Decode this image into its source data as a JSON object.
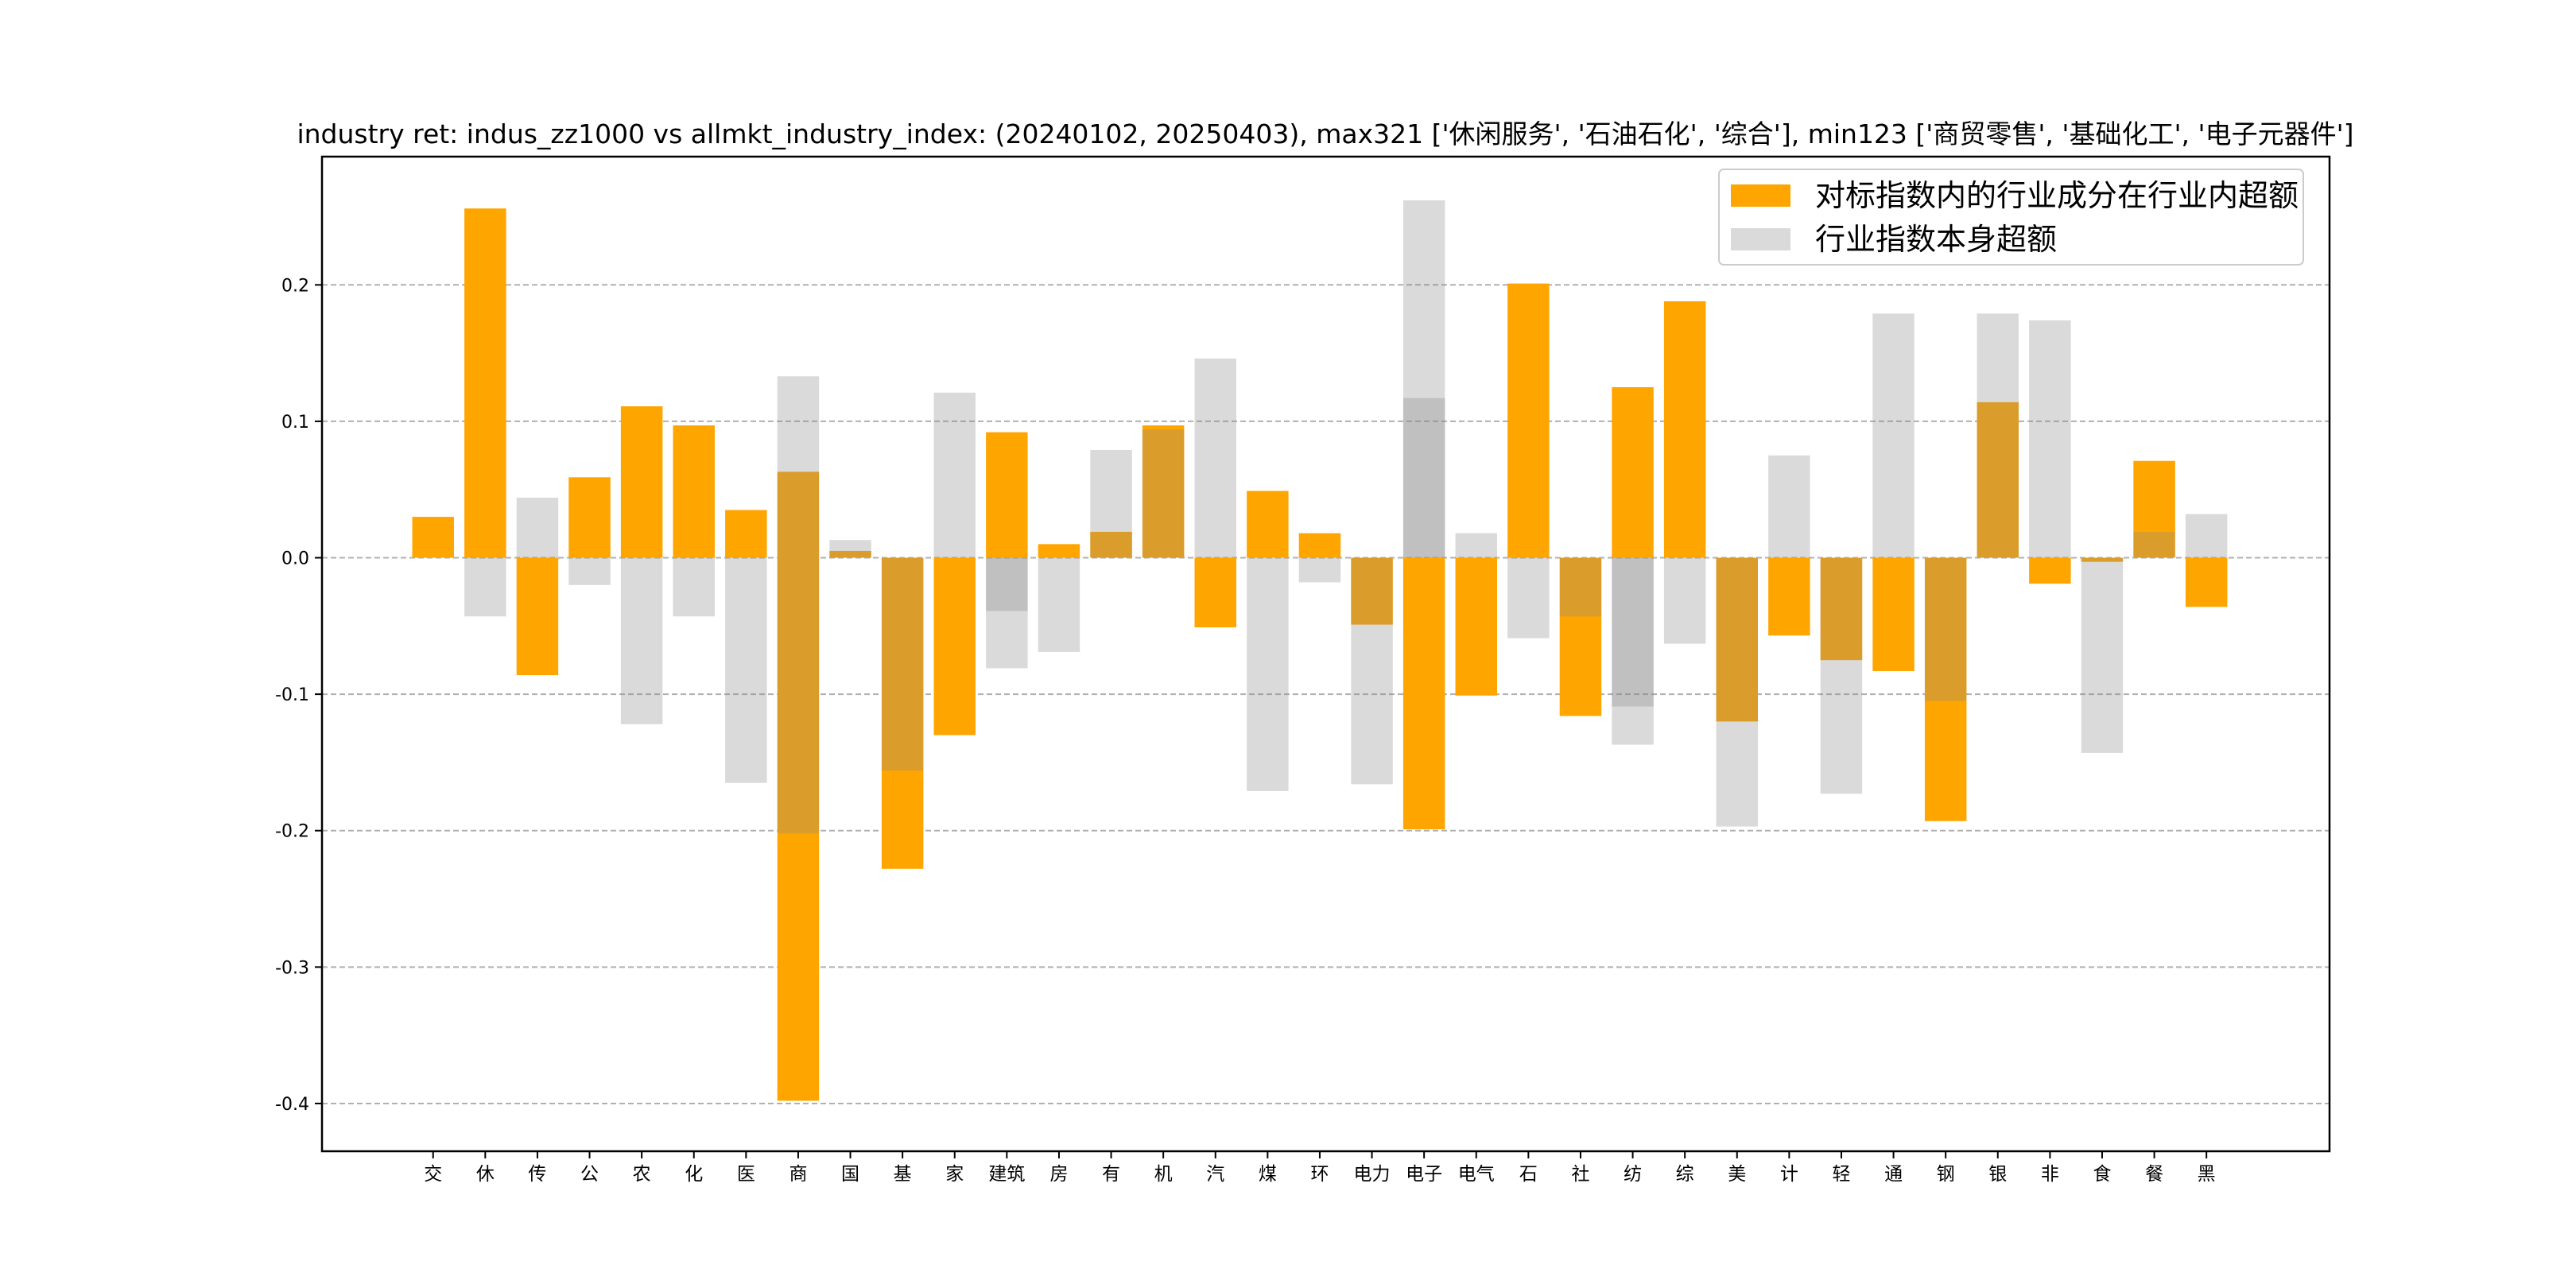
{
  "chart_data": {
    "type": "bar",
    "title": "industry ret: indus_zz1000 vs allmkt_industry_index: (20240102, 20250403), max321 ['休闲服务', '石油石化', '综合'], min123 ['商贸零售', '基础化工', '电子元器件']",
    "xlabel": "",
    "ylabel": "",
    "ylim": [
      -0.435,
      0.294
    ],
    "yticks": [
      -0.4,
      -0.3,
      -0.2,
      -0.1,
      0.0,
      0.1,
      0.2
    ],
    "ytick_labels": [
      "-0.4",
      "-0.3",
      "-0.2",
      "-0.1",
      "0.0",
      "0.1",
      "0.2"
    ],
    "grid": "horizontal dashed",
    "legend_position": "top-right",
    "colors": {
      "orange": "#FFA500",
      "gray": "#878787"
    },
    "categories": [
      "交",
      "休",
      "传",
      "公",
      "农",
      "化",
      "医",
      "商",
      "国",
      "基",
      "家",
      "建筑",
      "房",
      "有",
      "机",
      "汽",
      "煤",
      "环",
      "电力",
      "电子",
      "电气",
      "石",
      "社",
      "纺",
      "综",
      "美",
      "计",
      "轻",
      "通",
      "钢",
      "银",
      "非",
      "食",
      "餐",
      "黑"
    ],
    "series": [
      {
        "name": "对标指数内的行业成分在行业内超额",
        "color": "#FFA500",
        "segments": [
          [
            [
              0,
              0.03
            ]
          ],
          [
            [
              0,
              0.256
            ]
          ],
          [
            [
              -0.086,
              0
            ]
          ],
          [
            [
              0,
              0.059
            ]
          ],
          [
            [
              0,
              0.111
            ]
          ],
          [
            [
              0,
              0.097
            ]
          ],
          [
            [
              0,
              0.035
            ]
          ],
          [
            [
              -0.398,
              0.063
            ]
          ],
          [
            [
              0,
              0.005
            ]
          ],
          [
            [
              -0.228,
              0
            ]
          ],
          [
            [
              -0.13,
              0
            ]
          ],
          [
            [
              0,
              0.092
            ]
          ],
          [
            [
              0,
              0.01
            ]
          ],
          [
            [
              0,
              0.019
            ]
          ],
          [
            [
              0,
              0.097
            ]
          ],
          [
            [
              -0.051,
              0
            ]
          ],
          [
            [
              0,
              0.049
            ]
          ],
          [
            [
              0,
              0.018
            ]
          ],
          [
            [
              -0.049,
              0
            ]
          ],
          [
            [
              -0.199,
              0
            ]
          ],
          [
            [
              -0.101,
              0
            ]
          ],
          [
            [
              0,
              0.201
            ]
          ],
          [
            [
              -0.116,
              0
            ]
          ],
          [
            [
              0,
              0.125
            ]
          ],
          [
            [
              0,
              0.188
            ]
          ],
          [
            [
              -0.12,
              0
            ]
          ],
          [
            [
              -0.057,
              0
            ]
          ],
          [
            [
              -0.075,
              0
            ]
          ],
          [
            [
              -0.083,
              0
            ]
          ],
          [
            [
              -0.193,
              0
            ]
          ],
          [
            [
              0,
              0.114
            ]
          ],
          [
            [
              -0.019,
              0
            ]
          ],
          [
            [
              -0.003,
              0
            ]
          ],
          [
            [
              0,
              0.071
            ]
          ],
          [
            [
              -0.036,
              0
            ]
          ]
        ]
      },
      {
        "name": "行业指数本身超额",
        "color": "#878787",
        "segments": [
          [],
          [
            [
              -0.043,
              0
            ]
          ],
          [
            [
              0,
              0.044
            ]
          ],
          [
            [
              -0.02,
              0
            ]
          ],
          [
            [
              -0.122,
              0
            ]
          ],
          [
            [
              -0.043,
              0
            ]
          ],
          [
            [
              -0.165,
              0
            ]
          ],
          [
            [
              -0.202,
              0.133
            ]
          ],
          [
            [
              0,
              0.013
            ]
          ],
          [
            [
              -0.156,
              0
            ]
          ],
          [
            [
              0,
              0.121
            ]
          ],
          [
            [
              -0.081,
              0
            ],
            [
              -0.039,
              0
            ]
          ],
          [
            [
              -0.069,
              0
            ]
          ],
          [
            [
              0,
              0.079
            ]
          ],
          [
            [
              0,
              0.094
            ]
          ],
          [
            [
              0,
              0.146
            ]
          ],
          [
            [
              -0.171,
              0
            ]
          ],
          [
            [
              -0.018,
              0
            ]
          ],
          [
            [
              -0.166,
              0
            ]
          ],
          [
            [
              0,
              0.262
            ],
            [
              0,
              0.117
            ]
          ],
          [
            [
              0,
              0.018
            ]
          ],
          [
            [
              -0.059,
              0
            ]
          ],
          [
            [
              -0.043,
              0
            ]
          ],
          [
            [
              -0.137,
              0
            ],
            [
              -0.109,
              0
            ]
          ],
          [
            [
              -0.063,
              0
            ]
          ],
          [
            [
              -0.197,
              0
            ]
          ],
          [
            [
              0,
              0.075
            ]
          ],
          [
            [
              -0.173,
              0
            ]
          ],
          [
            [
              0,
              0.179
            ]
          ],
          [
            [
              -0.105,
              0
            ]
          ],
          [
            [
              0,
              0.179
            ]
          ],
          [
            [
              0,
              0.174
            ]
          ],
          [
            [
              -0.143,
              0
            ]
          ],
          [
            [
              0,
              0.019
            ]
          ],
          [
            [
              0,
              0.032
            ]
          ]
        ]
      }
    ]
  }
}
